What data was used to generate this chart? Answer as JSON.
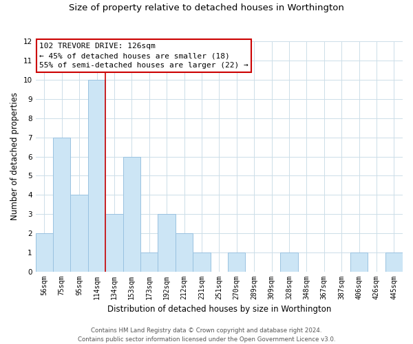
{
  "subtitle": "Size of property relative to detached houses in Worthington",
  "xlabel": "Distribution of detached houses by size in Worthington",
  "ylabel": "Number of detached properties",
  "bin_labels": [
    "56sqm",
    "75sqm",
    "95sqm",
    "114sqm",
    "134sqm",
    "153sqm",
    "173sqm",
    "192sqm",
    "212sqm",
    "231sqm",
    "251sqm",
    "270sqm",
    "289sqm",
    "309sqm",
    "328sqm",
    "348sqm",
    "367sqm",
    "387sqm",
    "406sqm",
    "426sqm",
    "445sqm"
  ],
  "bar_heights": [
    2,
    7,
    4,
    10,
    3,
    6,
    1,
    3,
    2,
    1,
    0,
    1,
    0,
    0,
    1,
    0,
    0,
    0,
    1,
    0,
    1
  ],
  "bar_color": "#cce5f5",
  "bar_edge_color": "#99c2e0",
  "vline_color": "#cc0000",
  "vline_pos": 3.5,
  "annotation_text_line1": "102 TREVORE DRIVE: 126sqm",
  "annotation_text_line2": "← 45% of detached houses are smaller (18)",
  "annotation_text_line3": "55% of semi-detached houses are larger (22) →",
  "ylim": [
    0,
    12
  ],
  "yticks": [
    0,
    1,
    2,
    3,
    4,
    5,
    6,
    7,
    8,
    9,
    10,
    11,
    12
  ],
  "footer_line1": "Contains HM Land Registry data © Crown copyright and database right 2024.",
  "footer_line2": "Contains public sector information licensed under the Open Government Licence v3.0.",
  "bg_color": "#ffffff",
  "grid_color": "#ccdde8",
  "title_fontsize": 10.5,
  "subtitle_fontsize": 9.5,
  "axis_label_fontsize": 8.5,
  "tick_fontsize": 7,
  "annotation_fontsize": 8,
  "footer_fontsize": 6.2
}
